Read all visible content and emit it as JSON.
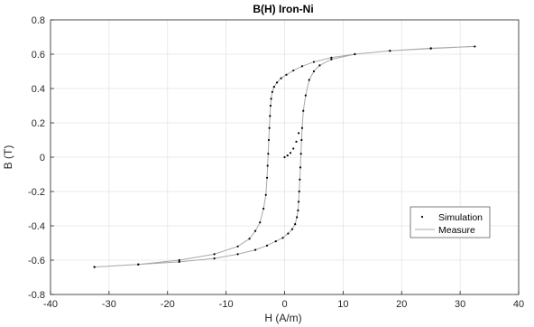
{
  "chart_data": {
    "type": "scatter",
    "title": "B(H) Iron-Ni",
    "xlabel": "H (A/m)",
    "ylabel": "B (T)",
    "xlim": [
      -40,
      40
    ],
    "ylim": [
      -0.8,
      0.8
    ],
    "xticks": [
      -40,
      -30,
      -20,
      -10,
      0,
      10,
      20,
      30,
      40
    ],
    "xtick_labels": [
      "-40",
      "-30",
      "-20",
      "-10",
      "0",
      "10",
      "20",
      "30",
      "40"
    ],
    "yticks": [
      -0.8,
      -0.6,
      -0.4,
      -0.2,
      0,
      0.2,
      0.4,
      0.6,
      0.8
    ],
    "ytick_labels": [
      "-0.8",
      "-0.6",
      "-0.4",
      "-0.2",
      "0",
      "0.2",
      "0.4",
      "0.6",
      "0.8"
    ],
    "grid": true,
    "legend_position": "right",
    "series": [
      {
        "name": "Simulation",
        "marker": "dot",
        "color": "#000000",
        "x": [
          -32.5,
          -25,
          -18,
          -12,
          -8,
          -6,
          -5,
          -4.2,
          -3.6,
          -3.2,
          -3.0,
          -2.9,
          -2.8,
          -2.7,
          -2.6,
          -2.5,
          -2.4,
          -2.3,
          -2.1,
          -1.8,
          -1.3,
          -0.6,
          0.3,
          1.5,
          3,
          5,
          8,
          12,
          18,
          25,
          32.5,
          25,
          18,
          12,
          8,
          6,
          5,
          4.2,
          3.6,
          3.2,
          3.0,
          2.9,
          2.8,
          2.7,
          2.6,
          2.5,
          2.4,
          2.3,
          2.1,
          1.8,
          1.3,
          0.6,
          -0.3,
          -1.5,
          -3,
          -5,
          -8,
          -12,
          -18,
          -25,
          -32.5,
          0,
          0.5,
          1.0,
          1.5,
          2.0,
          2.4
        ],
        "y": [
          -0.64,
          -0.625,
          -0.6,
          -0.565,
          -0.52,
          -0.475,
          -0.43,
          -0.38,
          -0.3,
          -0.22,
          -0.12,
          -0.05,
          0.02,
          0.1,
          0.17,
          0.24,
          0.3,
          0.34,
          0.38,
          0.41,
          0.435,
          0.46,
          0.48,
          0.505,
          0.53,
          0.555,
          0.58,
          0.6,
          0.62,
          0.635,
          0.645,
          0.633,
          0.62,
          0.6,
          0.57,
          0.535,
          0.5,
          0.45,
          0.36,
          0.27,
          0.17,
          0.1,
          0.02,
          -0.06,
          -0.13,
          -0.2,
          -0.26,
          -0.31,
          -0.35,
          -0.39,
          -0.42,
          -0.445,
          -0.47,
          -0.49,
          -0.515,
          -0.54,
          -0.565,
          -0.59,
          -0.61,
          -0.625,
          -0.64,
          0,
          0.01,
          0.025,
          0.05,
          0.09,
          0.14
        ]
      },
      {
        "name": "Measure",
        "line": "solid",
        "color": "#a8a8a8",
        "x": [
          -32.5,
          -25,
          -18,
          -12,
          -8,
          -6,
          -5,
          -4.2,
          -3.6,
          -3.2,
          -3.0,
          -2.9,
          -2.8,
          -2.7,
          -2.6,
          -2.5,
          -2.4,
          -2.3,
          -2.1,
          -1.8,
          -1.3,
          -0.6,
          0.3,
          1.5,
          3,
          5,
          8,
          12,
          18,
          25,
          32.5,
          25,
          18,
          12,
          8,
          6,
          5,
          4.2,
          3.6,
          3.2,
          3.0,
          2.9,
          2.8,
          2.7,
          2.6,
          2.5,
          2.4,
          2.3,
          2.1,
          1.8,
          1.3,
          0.6,
          -0.3,
          -1.5,
          -3,
          -5,
          -8,
          -12,
          -18,
          -25,
          -32.5
        ],
        "y": [
          -0.64,
          -0.625,
          -0.6,
          -0.565,
          -0.52,
          -0.475,
          -0.43,
          -0.38,
          -0.3,
          -0.22,
          -0.12,
          -0.05,
          0.02,
          0.1,
          0.17,
          0.24,
          0.3,
          0.34,
          0.38,
          0.41,
          0.435,
          0.46,
          0.48,
          0.505,
          0.53,
          0.555,
          0.58,
          0.6,
          0.62,
          0.635,
          0.645,
          0.633,
          0.62,
          0.6,
          0.57,
          0.535,
          0.5,
          0.45,
          0.36,
          0.27,
          0.17,
          0.1,
          0.02,
          -0.06,
          -0.13,
          -0.2,
          -0.26,
          -0.31,
          -0.35,
          -0.39,
          -0.42,
          -0.445,
          -0.47,
          -0.49,
          -0.515,
          -0.54,
          -0.565,
          -0.59,
          -0.61,
          -0.625,
          -0.64
        ]
      }
    ]
  }
}
